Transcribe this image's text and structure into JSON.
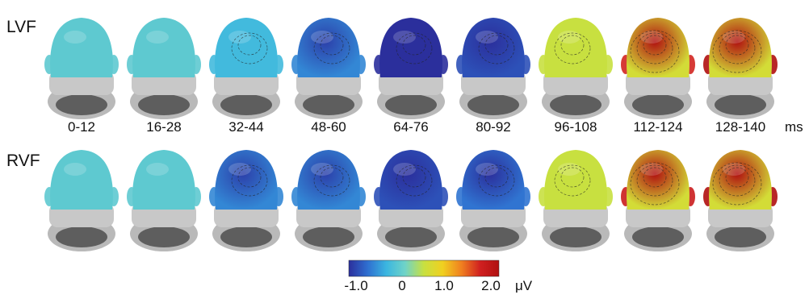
{
  "rows": [
    {
      "label": "LVF",
      "levels": [
        0.0,
        0.0,
        -0.2,
        -0.5,
        -1.0,
        -0.8,
        0.5,
        1.6,
        2.0
      ]
    },
    {
      "label": "RVF",
      "levels": [
        0.0,
        0.0,
        -0.5,
        -0.5,
        -0.8,
        -0.6,
        0.5,
        1.7,
        2.0
      ]
    }
  ],
  "time_windows": [
    "0-12",
    "16-28",
    "32-44",
    "48-60",
    "64-76",
    "80-92",
    "96-108",
    "112-124",
    "128-140"
  ],
  "time_unit": "ms",
  "colorbar": {
    "ticks": [
      "-1.0",
      "0",
      "1.0",
      "2.0"
    ],
    "tick_values": [
      -1.0,
      0.0,
      1.0,
      2.0
    ],
    "range": [
      -1.0,
      2.0
    ],
    "unit": "μV",
    "colors": [
      "#2b2f9c",
      "#2f6fd0",
      "#3bb6e0",
      "#6fd3c8",
      "#c8e040",
      "#f0d020",
      "#f08020",
      "#d02020",
      "#b01010"
    ]
  }
}
